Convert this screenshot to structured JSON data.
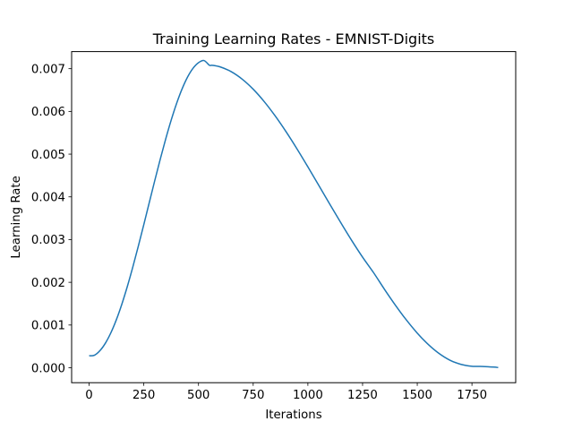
{
  "chart_data": {
    "type": "line",
    "title": "Training Learning Rates - EMNIST-Digits",
    "xlabel": "Iterations",
    "ylabel": "Learning Rate",
    "xlim": [
      -80,
      1950
    ],
    "ylim": [
      -0.00035,
      0.0074
    ],
    "xticks": [
      0,
      250,
      500,
      750,
      1000,
      1250,
      1500,
      1750
    ],
    "yticks": [
      0.0,
      0.001,
      0.002,
      0.003,
      0.004,
      0.005,
      0.006,
      0.007
    ],
    "ytick_labels": [
      "0.000",
      "0.001",
      "0.002",
      "0.003",
      "0.004",
      "0.005",
      "0.006",
      "0.007"
    ],
    "grid": false,
    "series": [
      {
        "color": "#1f77b4",
        "x": [
          0,
          25,
          50,
          75,
          100,
          125,
          150,
          175,
          200,
          225,
          250,
          275,
          300,
          325,
          350,
          375,
          400,
          425,
          450,
          475,
          500,
          525,
          550,
          562,
          600,
          650,
          700,
          750,
          800,
          850,
          900,
          950,
          1000,
          1050,
          1100,
          1150,
          1200,
          1250,
          1300,
          1350,
          1400,
          1450,
          1500,
          1550,
          1600,
          1650,
          1700,
          1750,
          1800,
          1850,
          1870
        ],
        "y": [
          0.00028,
          0.000295,
          0.000403,
          0.000581,
          0.000825,
          0.001131,
          0.001495,
          0.001908,
          0.002362,
          0.002847,
          0.003352,
          0.003867,
          0.00438,
          0.004879,
          0.005354,
          0.005794,
          0.006188,
          0.006528,
          0.006805,
          0.007011,
          0.007141,
          0.007191,
          0.00708,
          0.00708,
          0.00704,
          0.006929,
          0.006754,
          0.00652,
          0.006232,
          0.005898,
          0.005526,
          0.005125,
          0.004702,
          0.004268,
          0.00383,
          0.003399,
          0.002982,
          0.002589,
          0.002228,
          0.001837,
          0.001465,
          0.00112,
          0.000811,
          0.000547,
          0.000333,
          0.000175,
          7.9e-05,
          3.5e-05,
          3e-05,
          1.5e-05,
          5e-06
        ]
      }
    ]
  }
}
